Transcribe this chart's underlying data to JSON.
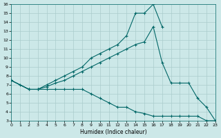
{
  "xlabel": "Humidex (Indice chaleur)",
  "bg_color": "#cce8e8",
  "line_color": "#006666",
  "grid_color": "#aacccc",
  "xlim": [
    0,
    23
  ],
  "ylim": [
    3,
    16
  ],
  "line1_x": [
    0,
    1,
    2,
    3,
    4,
    5,
    6,
    7,
    8,
    9,
    10,
    11,
    12,
    13,
    14,
    15,
    16,
    17
  ],
  "line1_y": [
    7.5,
    7.0,
    6.5,
    6.5,
    7.0,
    7.5,
    8.0,
    8.5,
    9.0,
    10.0,
    10.5,
    11.0,
    11.5,
    12.5,
    15.0,
    15.0,
    16.0,
    13.5
  ],
  "line2_x": [
    0,
    2,
    3,
    4,
    5,
    6,
    7,
    8,
    9,
    10,
    11,
    12,
    13,
    14,
    15,
    16,
    17,
    18,
    19,
    20,
    21,
    22,
    23
  ],
  "line2_y": [
    7.5,
    6.5,
    6.5,
    6.8,
    7.2,
    7.5,
    8.0,
    8.5,
    9.0,
    9.5,
    10.0,
    10.5,
    11.0,
    11.5,
    11.8,
    13.5,
    9.5,
    7.2,
    7.2,
    7.2,
    5.5,
    4.5,
    3.0
  ],
  "line3_x": [
    0,
    2,
    3,
    4,
    5,
    6,
    7,
    8,
    9,
    10,
    11,
    12,
    13,
    14,
    15,
    16,
    17,
    18,
    19,
    20,
    21,
    22,
    23
  ],
  "line3_y": [
    7.5,
    6.5,
    6.5,
    6.5,
    6.5,
    6.5,
    6.5,
    6.5,
    6.0,
    5.5,
    5.0,
    4.5,
    4.5,
    4.0,
    3.8,
    3.5,
    3.5,
    3.5,
    3.5,
    3.5,
    3.5,
    3.0,
    3.0
  ]
}
